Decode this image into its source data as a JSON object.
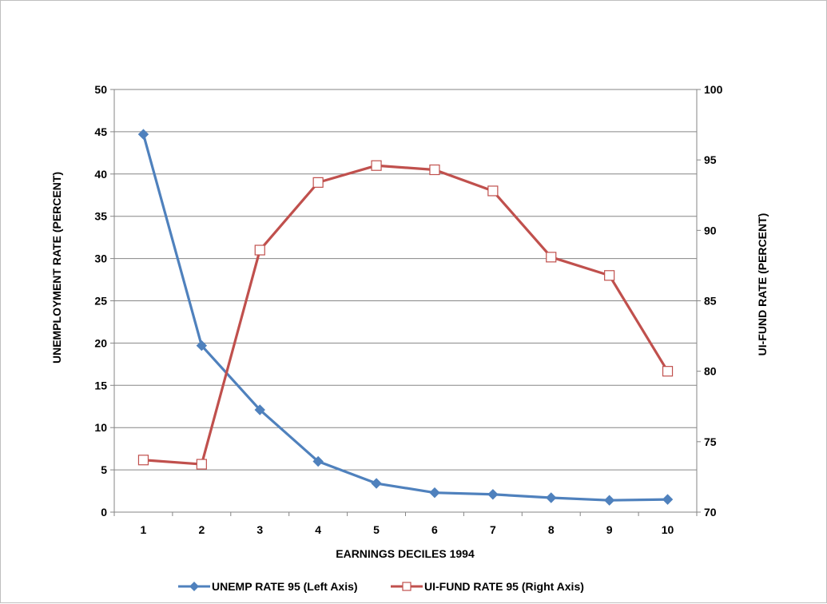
{
  "chart_data": {
    "type": "line",
    "title": "",
    "xlabel": "EARNINGS DECILES 1994",
    "ylabel_left": "UNEMPLOYMENT RATE (PERCENT)",
    "ylabel_right": "UI-FUND RATE (PERCENT)",
    "categories": [
      "1",
      "2",
      "3",
      "4",
      "5",
      "6",
      "7",
      "8",
      "9",
      "10"
    ],
    "ylim_left": [
      0,
      50
    ],
    "yticks_left": [
      "0",
      "5",
      "10",
      "15",
      "20",
      "25",
      "30",
      "35",
      "40",
      "45",
      "50"
    ],
    "ylim_right": [
      70,
      100
    ],
    "yticks_right": [
      "70",
      "75",
      "80",
      "85",
      "90",
      "95",
      "100"
    ],
    "grid": true,
    "legend_position": "bottom",
    "series": [
      {
        "name": "UNEMP RATE 95 (Left Axis)",
        "axis": "left",
        "color": "#4f81bd",
        "marker": "diamond",
        "values": [
          44.7,
          19.7,
          12.1,
          6.0,
          3.4,
          2.3,
          2.1,
          1.7,
          1.4,
          1.5
        ]
      },
      {
        "name": "UI-FUND RATE 95 (Right Axis)",
        "axis": "right",
        "color": "#c0504d",
        "marker": "square-open",
        "values": [
          73.7,
          73.4,
          88.6,
          93.4,
          94.6,
          94.3,
          92.8,
          88.1,
          86.8,
          80.0
        ]
      }
    ]
  }
}
